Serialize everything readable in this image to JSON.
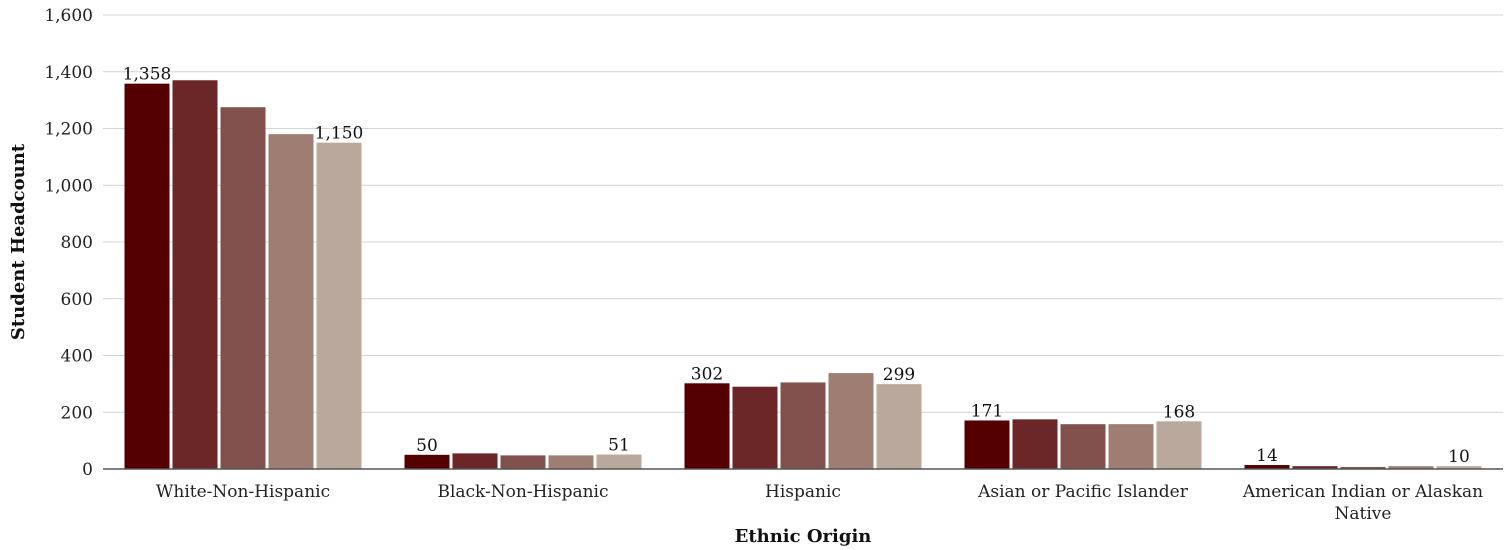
{
  "chart_data": {
    "type": "bar",
    "title": "",
    "xlabel": "Ethnic Origin",
    "ylabel": "Student Headcount",
    "ylim": [
      0,
      1600
    ],
    "yticks": [
      0,
      200,
      400,
      600,
      800,
      1000,
      1200,
      1400,
      1600
    ],
    "ytick_labels": [
      "0",
      "200",
      "400",
      "600",
      "800",
      "1,000",
      "1,200",
      "1,400",
      "1,600"
    ],
    "grid": true,
    "legend": "none",
    "categories": [
      "White-Non-Hispanic",
      "Black-Non-Hispanic",
      "Hispanic",
      "Asian or Pacific Islander",
      "American Indian or Alaskan Native"
    ],
    "category_lines": [
      [
        "White-Non-Hispanic"
      ],
      [
        "Black-Non-Hispanic"
      ],
      [
        "Hispanic"
      ],
      [
        "Asian or Pacific Islander"
      ],
      [
        "American Indian or Alaskan",
        "Native"
      ]
    ],
    "series": [
      {
        "color": "#540000",
        "values": [
          1358,
          50,
          302,
          171,
          14
        ]
      },
      {
        "color": "#6b2727",
        "values": [
          1370,
          55,
          290,
          175,
          10
        ]
      },
      {
        "color": "#82514d",
        "values": [
          1275,
          48,
          305,
          158,
          7
        ]
      },
      {
        "color": "#9e7d72",
        "values": [
          1180,
          48,
          338,
          158,
          10
        ]
      },
      {
        "color": "#bba89c",
        "values": [
          1150,
          51,
          299,
          168,
          10
        ]
      }
    ],
    "data_labels": [
      [
        "1,358",
        "50",
        "302",
        "171",
        "14"
      ],
      [
        null,
        null,
        null,
        null,
        null
      ],
      [
        null,
        null,
        null,
        null,
        null
      ],
      [
        null,
        null,
        null,
        null,
        null
      ],
      [
        "1,150",
        "51",
        "299",
        "168",
        "10"
      ]
    ]
  }
}
